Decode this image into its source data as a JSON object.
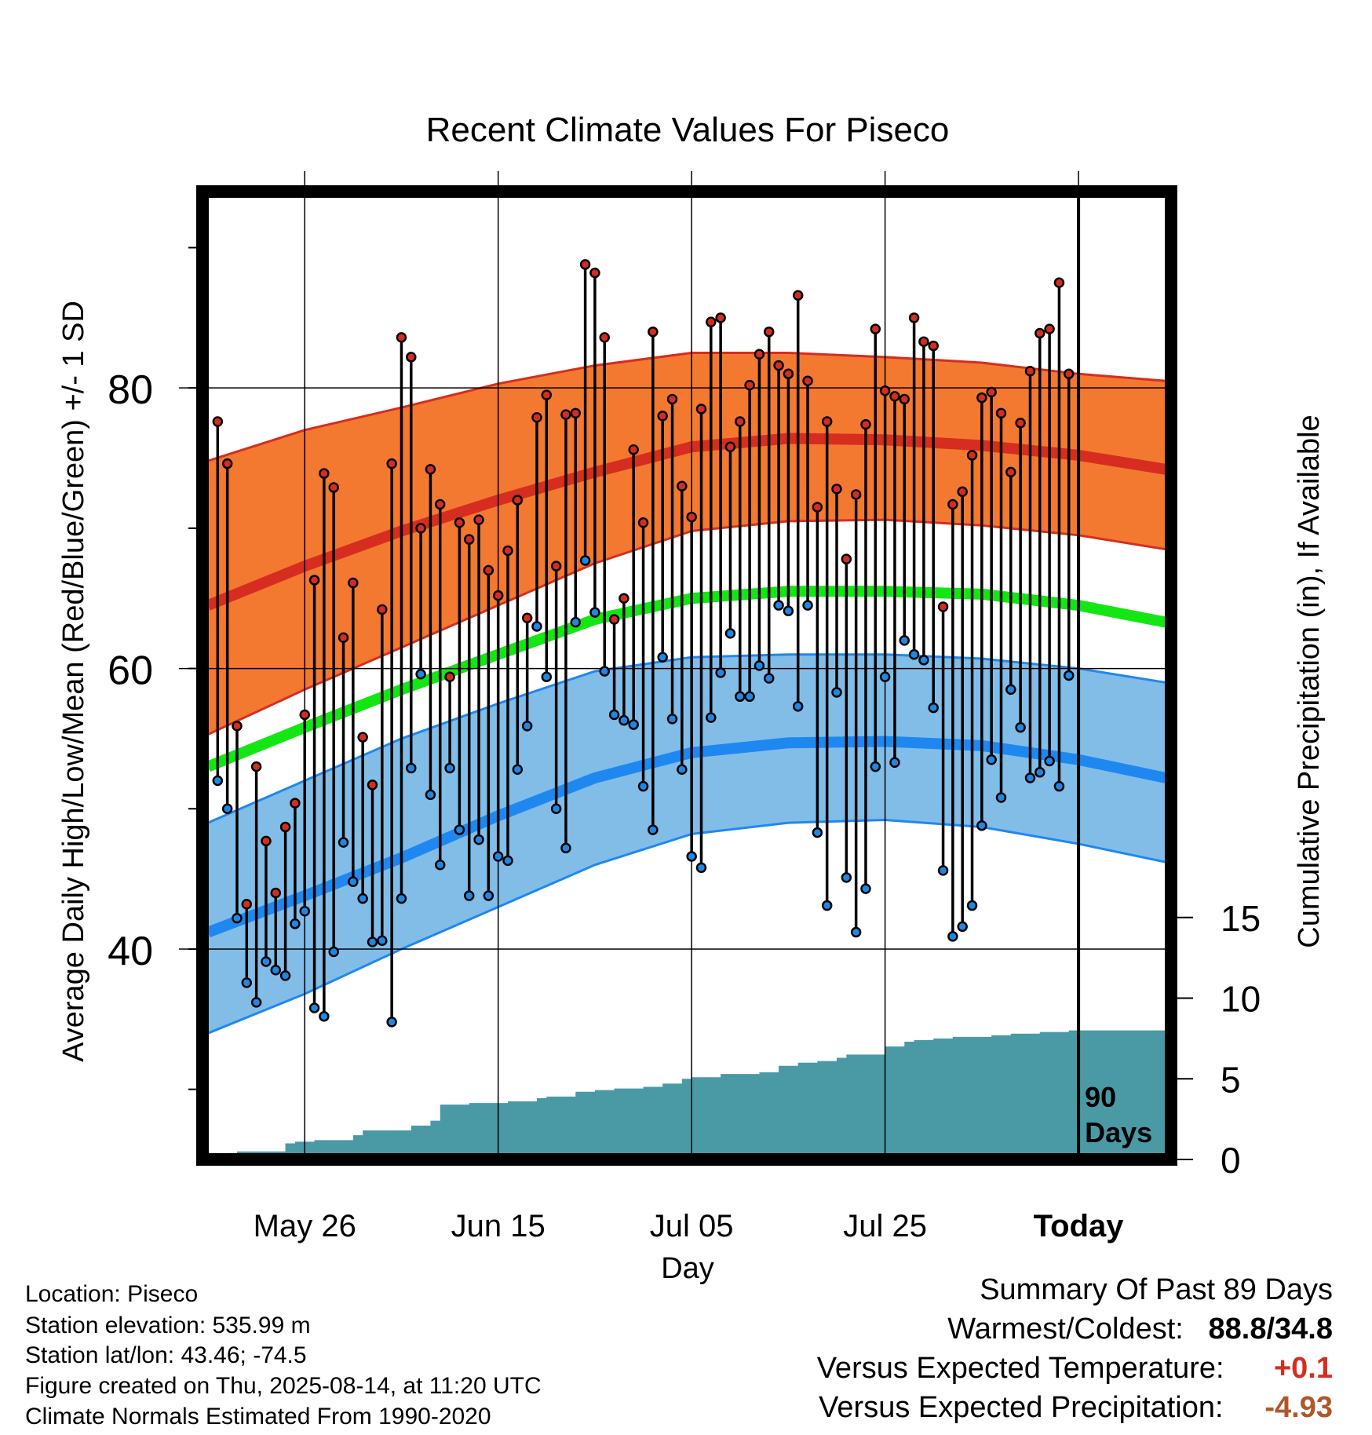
{
  "chart_data": {
    "type": "line",
    "title": "Recent Climate Values For Piseco",
    "xlabel": "Day",
    "ylabel": "Average Daily High/Low/Mean (Red/Blue/Green) +/- 1 SD",
    "y2label": "Cumulative Precipitation (in), If Available",
    "x_range_days": [
      -90,
      9
    ],
    "x_ticks": [
      {
        "day": -80,
        "label": "May 26"
      },
      {
        "day": -60,
        "label": "Jun 15"
      },
      {
        "day": -40,
        "label": "Jul 05"
      },
      {
        "day": -20,
        "label": "Jul 25"
      },
      {
        "day": 0,
        "label": "Today"
      }
    ],
    "ylim": [
      25,
      94
    ],
    "y_ticks": [
      40,
      60,
      80
    ],
    "y2lim": [
      0,
      60
    ],
    "y2_ticks": [
      0,
      5,
      10,
      15
    ],
    "today_marker_label": [
      "90",
      "Days"
    ],
    "normals": {
      "days": [
        -90,
        -80,
        -70,
        -60,
        -50,
        -40,
        -30,
        -20,
        -10,
        0,
        9
      ],
      "high_mean": [
        64.5,
        67.3,
        69.8,
        72.0,
        74.0,
        75.8,
        76.4,
        76.3,
        75.9,
        75.2,
        74.2
      ],
      "high_plus_sd": [
        74.8,
        77.0,
        78.6,
        80.3,
        81.6,
        82.5,
        82.5,
        82.2,
        81.8,
        81.0,
        80.5
      ],
      "high_minus_sd": [
        55.3,
        58.5,
        61.5,
        64.5,
        67.5,
        69.8,
        70.5,
        70.6,
        70.2,
        69.5,
        68.5
      ],
      "mean": [
        53.0,
        55.8,
        58.5,
        61.0,
        63.5,
        65.0,
        65.5,
        65.5,
        65.3,
        64.5,
        63.3
      ],
      "low_mean": [
        41.2,
        43.8,
        46.5,
        49.5,
        52.2,
        54.0,
        54.7,
        54.8,
        54.5,
        53.5,
        52.2
      ],
      "low_plus_sd": [
        49.0,
        52.0,
        55.0,
        57.5,
        59.8,
        60.8,
        61.0,
        61.0,
        60.7,
        60.0,
        59.0
      ],
      "low_minus_sd": [
        34.0,
        36.8,
        40.0,
        43.0,
        46.0,
        48.2,
        49.0,
        49.2,
        48.7,
        47.5,
        46.2
      ]
    },
    "observed": {
      "start_day": -89,
      "high": [
        77.6,
        74.6,
        55.9,
        43.2,
        53.0,
        47.7,
        44.0,
        48.7,
        50.4,
        56.7,
        66.3,
        73.9,
        72.9,
        62.2,
        66.1,
        55.1,
        51.7,
        64.2,
        74.6,
        83.6,
        82.2,
        70.0,
        74.2,
        71.7,
        59.4,
        70.4,
        69.2,
        70.6,
        67.0,
        65.2,
        68.4,
        72.0,
        63.6,
        77.9,
        79.5,
        67.3,
        78.1,
        78.2,
        88.8,
        88.2,
        83.6,
        63.5,
        65.0,
        75.6,
        70.4,
        84.0,
        78.0,
        79.2,
        73.0,
        70.8,
        78.5,
        84.7,
        85.0,
        75.8,
        77.6,
        80.2,
        82.4,
        84.0,
        81.6,
        81.0,
        86.6,
        80.5,
        71.5,
        77.6,
        72.8,
        67.8,
        72.4,
        77.4,
        84.2,
        79.8,
        79.4,
        79.2,
        85.0,
        83.3,
        83.0,
        64.4,
        71.7,
        72.6,
        75.2,
        79.3,
        79.7,
        78.2,
        74.0,
        77.5,
        81.2,
        83.9,
        84.2,
        87.5,
        81.0
      ],
      "low": [
        52.0,
        50.0,
        42.2,
        37.6,
        36.2,
        39.1,
        38.5,
        38.1,
        41.8,
        42.7,
        35.8,
        35.2,
        39.8,
        47.6,
        44.8,
        43.6,
        40.5,
        40.6,
        34.8,
        43.6,
        52.9,
        59.6,
        51.0,
        46.0,
        52.9,
        48.5,
        43.8,
        47.8,
        43.8,
        46.6,
        46.3,
        52.8,
        55.9,
        63.0,
        59.4,
        50.0,
        47.2,
        63.3,
        67.7,
        64.0,
        59.8,
        56.7,
        56.3,
        56.0,
        51.6,
        48.5,
        60.8,
        56.4,
        52.8,
        46.6,
        45.8,
        56.5,
        59.7,
        62.5,
        58.0,
        58.0,
        60.2,
        59.3,
        64.5,
        64.1,
        57.3,
        64.5,
        48.3,
        43.1,
        58.3,
        45.1,
        41.2,
        44.3,
        53.0,
        59.4,
        53.3,
        62.0,
        61.0,
        60.6,
        57.2,
        45.6,
        40.9,
        41.6,
        43.1,
        48.8,
        53.5,
        50.8,
        58.5,
        55.8,
        52.2,
        52.6,
        53.4,
        51.6,
        59.5
      ]
    },
    "precip_cumulative": {
      "days": [
        -90,
        -88,
        -87,
        -84,
        -82,
        -81,
        -79,
        -77,
        -75,
        -74,
        -71,
        -69,
        -67,
        -66,
        -64,
        -63,
        -61,
        -59,
        -58,
        -56,
        -55,
        -53,
        -52,
        -50,
        -48,
        -46,
        -45,
        -43,
        -41,
        -40,
        -38,
        -37,
        -33,
        -31,
        -29,
        -27,
        -25,
        -24,
        -20,
        -18,
        -17,
        -15,
        -13,
        -9,
        -7,
        -4,
        -1,
        9
      ],
      "values": [
        0,
        0.4,
        0.5,
        0.5,
        1.0,
        1.1,
        1.2,
        1.2,
        1.5,
        1.8,
        1.8,
        2.1,
        2.4,
        3.4,
        3.4,
        3.5,
        3.5,
        3.6,
        3.6,
        3.8,
        3.9,
        3.9,
        4.2,
        4.3,
        4.4,
        4.4,
        4.5,
        4.7,
        5.0,
        5.1,
        5.1,
        5.3,
        5.4,
        5.8,
        6.0,
        6.1,
        6.3,
        6.5,
        7.0,
        7.3,
        7.4,
        7.5,
        7.6,
        7.7,
        7.8,
        7.9,
        8.0,
        8.0
      ]
    },
    "colors": {
      "high_band": "#f47930",
      "high_line": "#d62d20",
      "mean_line": "#14e614",
      "low_band": "#82bde8",
      "low_line": "#1e88f0",
      "precip": "#4a9aa5",
      "high_marker": "#d62d20",
      "low_marker": "#1e88e5"
    },
    "grid": true,
    "legend": "none"
  },
  "footer": {
    "location": "Location: Piseco",
    "elevation": "Station elevation: 535.99 m",
    "latlon": "Station lat/lon: 43.46; -74.5",
    "created": "Figure created on Thu, 2025-08-14, at 11:20 UTC",
    "normals": "Climate Normals Estimated From 1990-2020"
  },
  "summary": {
    "title": "Summary Of Past 89 Days",
    "warm_cold_label": "Warmest/Coldest:",
    "warm_cold_value": "88.8/34.8",
    "temp_label": "Versus Expected Temperature:",
    "temp_value": "+0.1",
    "temp_color": "#d62d20",
    "precip_label": "Versus Expected Precipitation:",
    "precip_value": "-4.93",
    "precip_color": "#b0582a"
  }
}
